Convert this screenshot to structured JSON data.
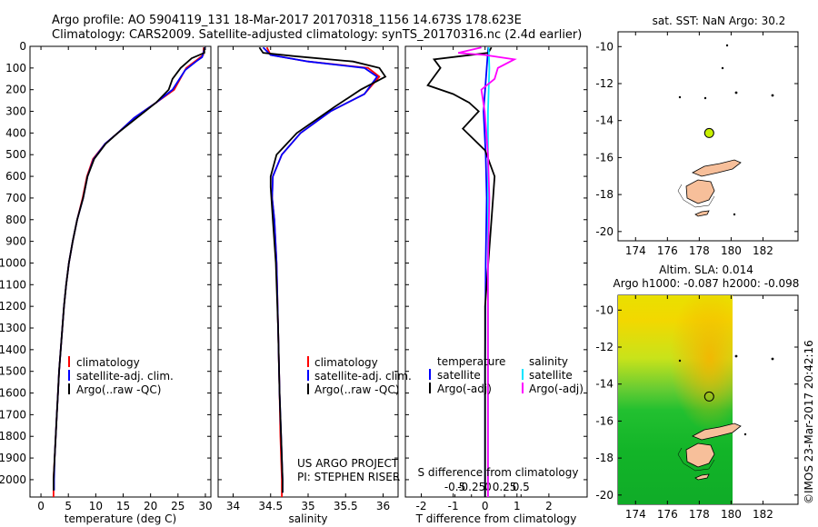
{
  "header": {
    "title_line1": "Argo profile: AO 5904119_131 18-Mar-2017 20170318_1156 14.673S 178.623E",
    "title_line2": "Climatology: CARS2009. Satellite-adjusted climatology: synTS_20170316.nc (2.4d earlier)"
  },
  "colors": {
    "climatology": "#ff0000",
    "satellite": "#0000ff",
    "argo": "#000000",
    "salinity_satellite": "#00e5ff",
    "salinity_argo": "#ff00ff",
    "argo_marker": "#c8f000",
    "land": "#f7bf9a"
  },
  "chart_data": [
    {
      "id": "temperature-panel",
      "type": "line",
      "xlabel": "temperature (deg C)",
      "xlim": [
        -2,
        31
      ],
      "ylim": [
        2080,
        0
      ],
      "xticks": [
        0,
        5,
        10,
        15,
        20,
        25,
        30
      ],
      "xtick_labels": [
        "0",
        "5",
        "10",
        "15",
        "20",
        "25",
        "30"
      ],
      "yticks": [
        0,
        100,
        200,
        300,
        400,
        500,
        600,
        700,
        800,
        900,
        1000,
        1100,
        1200,
        1300,
        1400,
        1500,
        1600,
        1700,
        1800,
        1900,
        2000
      ],
      "ytick_labels": [
        "0",
        "100",
        "200",
        "300",
        "400",
        "500",
        "600",
        "700",
        "800",
        "900",
        "1000",
        "1100",
        "1200",
        "1300",
        "1400",
        "1500",
        "1600",
        "1700",
        "1800",
        "1900",
        "2000"
      ],
      "legend": {
        "position": "lower-middle",
        "entries": [
          "climatology",
          "satellite-adj. clim.",
          "Argo(..raw -QC)"
        ]
      },
      "series": [
        {
          "name": "climatology",
          "color_key": "climatology",
          "points": [
            [
              29.7,
              5
            ],
            [
              29.6,
              40
            ],
            [
              28.6,
              60
            ],
            [
              26.5,
              100
            ],
            [
              24.3,
              200
            ],
            [
              21,
              260
            ],
            [
              17,
              330
            ],
            [
              14,
              400
            ],
            [
              11.7,
              450
            ],
            [
              9.5,
              520
            ],
            [
              8.4,
              600
            ],
            [
              7.6,
              700
            ],
            [
              6.6,
              800
            ],
            [
              5.8,
              900
            ],
            [
              5.1,
              1000
            ],
            [
              4.6,
              1100
            ],
            [
              4.2,
              1200
            ],
            [
              3.9,
              1300
            ],
            [
              3.6,
              1400
            ],
            [
              3.3,
              1500
            ],
            [
              3.1,
              1600
            ],
            [
              2.9,
              1700
            ],
            [
              2.7,
              1800
            ],
            [
              2.5,
              1900
            ],
            [
              2.3,
              2000
            ],
            [
              2.3,
              2080
            ]
          ]
        },
        {
          "name": "satellite-adj. clim.",
          "color_key": "satellite",
          "points": [
            [
              29.9,
              5
            ],
            [
              29.4,
              50
            ],
            [
              28.3,
              70
            ],
            [
              26.3,
              110
            ],
            [
              24,
              200
            ],
            [
              21,
              260
            ],
            [
              17,
              330
            ],
            [
              14,
              400
            ],
            [
              11.7,
              450
            ],
            [
              9.6,
              520
            ],
            [
              8.5,
              600
            ],
            [
              7.7,
              700
            ],
            [
              6.6,
              800
            ],
            [
              5.8,
              900
            ],
            [
              5.1,
              1000
            ],
            [
              4.6,
              1100
            ],
            [
              4.2,
              1200
            ],
            [
              3.9,
              1300
            ],
            [
              3.6,
              1400
            ],
            [
              3.3,
              1500
            ],
            [
              3.1,
              1600
            ],
            [
              2.9,
              1700
            ],
            [
              2.7,
              1800
            ],
            [
              2.5,
              1900
            ],
            [
              2.4,
              2000
            ],
            [
              2.4,
              2050
            ]
          ]
        },
        {
          "name": "Argo(..raw -QC)",
          "color_key": "argo",
          "points": [
            [
              29.8,
              5
            ],
            [
              29.8,
              30
            ],
            [
              27.5,
              55
            ],
            [
              25.5,
              100
            ],
            [
              24,
              150
            ],
            [
              23.3,
              200
            ],
            [
              21,
              260
            ],
            [
              17.5,
              330
            ],
            [
              14,
              400
            ],
            [
              11.8,
              450
            ],
            [
              9.7,
              520
            ],
            [
              8.5,
              600
            ],
            [
              7.7,
              700
            ],
            [
              6.6,
              800
            ],
            [
              5.8,
              900
            ],
            [
              5.1,
              1000
            ],
            [
              4.6,
              1100
            ],
            [
              4.2,
              1200
            ],
            [
              3.9,
              1300
            ],
            [
              3.6,
              1400
            ],
            [
              3.3,
              1500
            ],
            [
              3.1,
              1600
            ],
            [
              2.9,
              1700
            ],
            [
              2.7,
              1800
            ],
            [
              2.5,
              1900
            ],
            [
              2.3,
              2000
            ],
            [
              2.3,
              2050
            ]
          ]
        }
      ]
    },
    {
      "id": "salinity-panel",
      "type": "line",
      "xlabel": "salinity",
      "xlim": [
        33.8,
        36.2
      ],
      "ylim": [
        2080,
        0
      ],
      "xticks": [
        34,
        34.5,
        35,
        35.5,
        36
      ],
      "xtick_labels": [
        "34",
        "34.5",
        "35",
        "35.5",
        "36"
      ],
      "legend": {
        "position": "lower-right",
        "entries": [
          "climatology",
          "satellite-adj. clim.",
          "Argo(..raw -QC)"
        ]
      },
      "annotations": [
        "US ARGO PROJECT",
        "PI: STEPHEN RISER"
      ],
      "series": [
        {
          "name": "climatology",
          "color_key": "climatology",
          "points": [
            [
              34.45,
              5
            ],
            [
              34.5,
              40
            ],
            [
              35,
              70
            ],
            [
              35.8,
              100
            ],
            [
              35.95,
              140
            ],
            [
              35.75,
              220
            ],
            [
              35.3,
              300
            ],
            [
              34.9,
              400
            ],
            [
              34.65,
              500
            ],
            [
              34.53,
              600
            ],
            [
              34.52,
              700
            ],
            [
              34.55,
              800
            ],
            [
              34.58,
              1000
            ],
            [
              34.6,
              1300
            ],
            [
              34.62,
              1600
            ],
            [
              34.63,
              1800
            ],
            [
              34.65,
              2000
            ],
            [
              34.65,
              2080
            ]
          ]
        },
        {
          "name": "satellite-adj. clim.",
          "color_key": "satellite",
          "points": [
            [
              34.4,
              5
            ],
            [
              34.5,
              40
            ],
            [
              35,
              70
            ],
            [
              35.75,
              100
            ],
            [
              35.92,
              140
            ],
            [
              35.75,
              220
            ],
            [
              35.3,
              300
            ],
            [
              34.9,
              400
            ],
            [
              34.65,
              500
            ],
            [
              34.53,
              600
            ],
            [
              34.52,
              700
            ],
            [
              34.55,
              800
            ],
            [
              34.58,
              1000
            ],
            [
              34.6,
              1300
            ],
            [
              34.62,
              1600
            ],
            [
              34.64,
              1800
            ],
            [
              34.66,
              2000
            ],
            [
              34.66,
              2060
            ]
          ]
        },
        {
          "name": "Argo(..raw -QC)",
          "color_key": "argo",
          "points": [
            [
              34.35,
              5
            ],
            [
              34.4,
              30
            ],
            [
              34.8,
              45
            ],
            [
              35.6,
              70
            ],
            [
              35.95,
              100
            ],
            [
              36.03,
              140
            ],
            [
              35.7,
              200
            ],
            [
              35.35,
              280
            ],
            [
              34.85,
              400
            ],
            [
              34.58,
              500
            ],
            [
              34.5,
              600
            ],
            [
              34.5,
              650
            ],
            [
              34.53,
              800
            ],
            [
              34.57,
              1000
            ],
            [
              34.6,
              1300
            ],
            [
              34.62,
              1600
            ],
            [
              34.64,
              1800
            ],
            [
              34.66,
              2000
            ],
            [
              34.66,
              2060
            ]
          ]
        }
      ]
    },
    {
      "id": "difference-panel",
      "type": "line",
      "xlabel": "T difference from climatology",
      "top_axis_label": "S difference from climatology",
      "xlim": [
        -2.5,
        3.2
      ],
      "ylim": [
        2080,
        0
      ],
      "xticks": [
        -2,
        -1,
        0,
        1,
        2
      ],
      "xtick_labels": [
        "-2",
        "-1",
        "0",
        "1",
        "2"
      ],
      "sticks": [
        -0.5,
        -0.25,
        0,
        0.25,
        0.5
      ],
      "stick_labels": [
        "-0.5",
        "-0.25",
        "0",
        "0.25",
        "0.5"
      ],
      "legend": {
        "position": "lower-middle",
        "col1_header": "temperature",
        "col2_header": "salinity",
        "col1": [
          "satellite",
          "Argo(-adj)"
        ],
        "col2": [
          "satellite",
          "Argo(-adj)"
        ]
      },
      "series": [
        {
          "name": "temperature satellite",
          "color_key": "satellite",
          "points": [
            [
              0.1,
              5
            ],
            [
              0.05,
              100
            ],
            [
              -0.05,
              300
            ],
            [
              0.02,
              500
            ],
            [
              0.05,
              700
            ],
            [
              0.02,
              1000
            ],
            [
              0,
              1500
            ],
            [
              0,
              2080
            ]
          ]
        },
        {
          "name": "temperature Argo(-adj)",
          "color_key": "argo",
          "points": [
            [
              0.2,
              5
            ],
            [
              0.1,
              30
            ],
            [
              -1.6,
              60
            ],
            [
              -1.4,
              100
            ],
            [
              -1.8,
              180
            ],
            [
              -1,
              220
            ],
            [
              -0.5,
              260
            ],
            [
              -0.2,
              300
            ],
            [
              -0.7,
              380
            ],
            [
              0,
              480
            ],
            [
              0.3,
              600
            ],
            [
              0.25,
              700
            ],
            [
              0.15,
              900
            ],
            [
              0,
              1200
            ],
            [
              0,
              1500
            ],
            [
              0,
              2080
            ]
          ]
        },
        {
          "name": "salinity satellite",
          "color_key": "salinity_satellite",
          "points": [
            [
              0.01,
              5
            ],
            [
              0.02,
              100
            ],
            [
              0,
              300
            ],
            [
              0,
              500
            ],
            [
              0,
              1000
            ],
            [
              0,
              2080
            ]
          ]
        },
        {
          "name": "salinity Argo(-adj)",
          "color_key": "salinity_argo",
          "points": [
            [
              -0.1,
              5
            ],
            [
              -0.45,
              30
            ],
            [
              -0.05,
              40
            ],
            [
              0.4,
              60
            ],
            [
              0.15,
              100
            ],
            [
              0.1,
              150
            ],
            [
              -0.1,
              200
            ],
            [
              -0.05,
              300
            ],
            [
              0,
              500
            ],
            [
              0.02,
              700
            ],
            [
              0,
              1000
            ],
            [
              0,
              2080
            ]
          ]
        }
      ]
    }
  ],
  "sst_map": {
    "title": "sat. SST: NaN   Argo: 30.2",
    "xticks": [
      174,
      176,
      178,
      180,
      182
    ],
    "xtick_labels": [
      "174",
      "176",
      "178",
      "180",
      "182"
    ],
    "yticks": [
      -10,
      -12,
      -14,
      -16,
      -18,
      -20
    ],
    "ytick_labels": [
      "-10",
      "-12",
      "-14",
      "-16",
      "-18",
      "-20"
    ],
    "argo_position": {
      "lon": 178.623,
      "lat": -14.673
    }
  },
  "sla_map": {
    "title_line1": "Altim. SLA: 0.014",
    "title_line2": "Argo h1000: -0.087  h2000: -0.098",
    "xticks": [
      174,
      176,
      178,
      180,
      182
    ],
    "xtick_labels": [
      "174",
      "176",
      "178",
      "180",
      "182"
    ],
    "yticks": [
      -10,
      -12,
      -14,
      -16,
      -18,
      -20
    ],
    "ytick_labels": [
      "-10",
      "-12",
      "-14",
      "-16",
      "-18",
      "-20"
    ],
    "argo_position": {
      "lon": 178.623,
      "lat": -14.673
    }
  },
  "footer": {
    "watermark": "©IMOS 23-Mar-2017 20:42:16"
  }
}
